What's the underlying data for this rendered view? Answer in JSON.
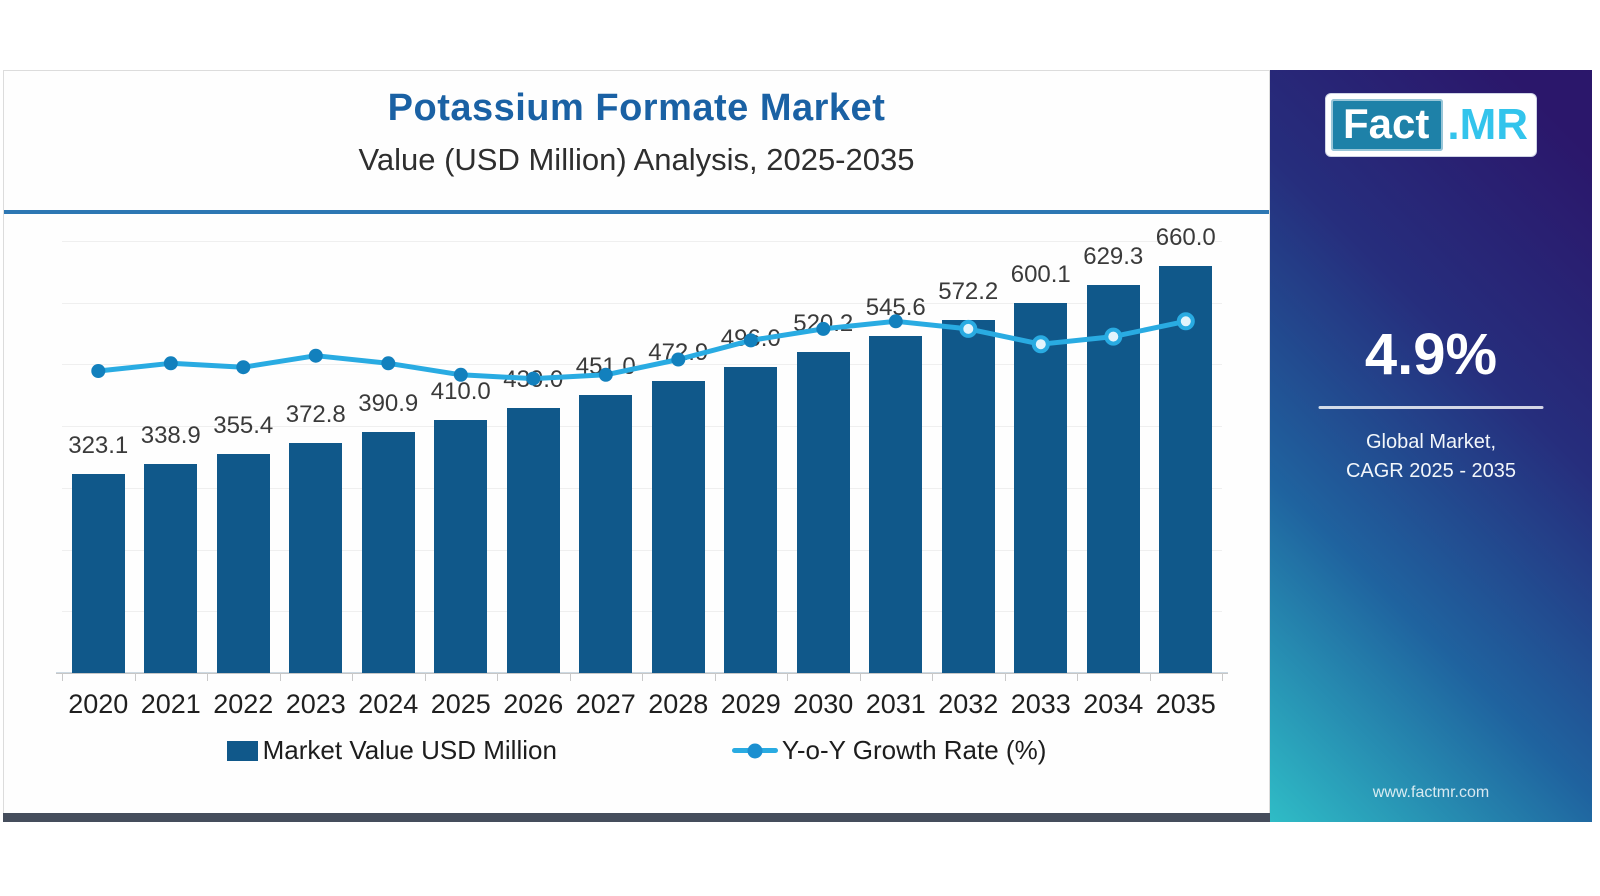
{
  "header": {
    "title": "Potassium Formate Market",
    "subtitle": "Value (USD Million) Analysis, 2025-2035"
  },
  "legend": {
    "bars_label": "Market Value USD Million",
    "line_label": "Y-o-Y Growth Rate (%)"
  },
  "panel": {
    "logo_fact": "Fact",
    "logo_mr": ".MR",
    "cagr_value": "4.9%",
    "cagr_label_line1": "Global Market,",
    "cagr_label_line2": "CAGR 2025 - 2035",
    "website": "www.factmr.com"
  },
  "colors": {
    "bar": "#10588a",
    "line": "#29abe2",
    "marker_solid": "#1280bd",
    "marker_hollow_fill": "#e3f4fc",
    "title_blue": "#1a61a4",
    "header_rule": "#2d77b3",
    "bottom_strip": "#454d5c",
    "panel_gradient_top": "#2b176b",
    "panel_gradient_mid": "#1f639f",
    "panel_gradient_bottom": "#2fbcc6",
    "logo_fact_bg": "#1e81a8",
    "logo_mr_text": "#33c4ec"
  },
  "chart_data": {
    "type": "bar",
    "subtype": "bar-with-line-overlay",
    "title": "Potassium Formate Market",
    "subtitle": "Value (USD Million) Analysis, 2025-2035",
    "categories": [
      "2020",
      "2021",
      "2022",
      "2023",
      "2024",
      "2025",
      "2026",
      "2027",
      "2028",
      "2029",
      "2030",
      "2031",
      "2032",
      "2033",
      "2034",
      "2035"
    ],
    "series": [
      {
        "name": "Market Value USD Million",
        "type": "bar",
        "values": [
          323.1,
          338.9,
          355.4,
          372.8,
          390.9,
          410.0,
          430.0,
          451.0,
          472.9,
          496.0,
          520.2,
          545.6,
          572.2,
          600.1,
          629.3,
          660.0
        ]
      },
      {
        "name": "Y-o-Y Growth Rate (%)",
        "type": "line",
        "values_estimated_from_plot": true,
        "values": [
          4.82,
          4.84,
          4.83,
          4.86,
          4.84,
          4.81,
          4.8,
          4.81,
          4.85,
          4.9,
          4.93,
          4.95,
          4.93,
          4.89,
          4.91,
          4.95
        ]
      }
    ],
    "xlabel": "",
    "ylabel": "",
    "bar_axis_range": [
      0,
      700
    ],
    "line_axis_range": [
      4.03,
      5.16
    ],
    "y_axis_visible": false,
    "grid": "horizontal-faint",
    "legend_position": "bottom",
    "data_labels": true,
    "hollow_markers_from_index": 12
  }
}
